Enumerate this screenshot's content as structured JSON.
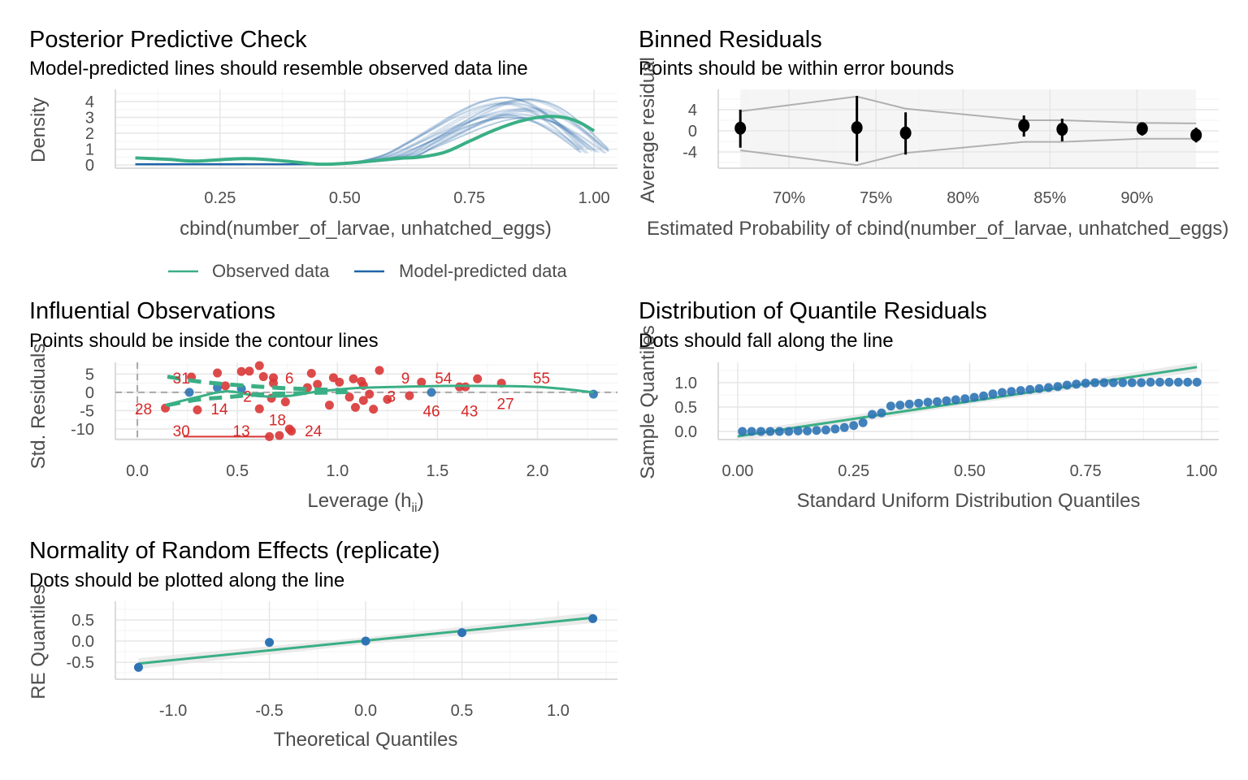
{
  "colors": {
    "observed": "#3aaf85",
    "predicted": "#1f64a8",
    "point_blue": "#2e74b5",
    "point_red": "#d93636",
    "band": "#e6e6e6",
    "bounds": "#b0b0b0"
  },
  "legend": {
    "observed": "Observed data",
    "predicted": "Model-predicted data"
  },
  "chart_data": [
    {
      "id": "ppc",
      "type": "line",
      "title": "Posterior Predictive Check",
      "subtitle": "Model-predicted lines should resemble observed data line",
      "xlabel": "cbind(number_of_larvae, unhatched_eggs)",
      "ylabel": "Density",
      "xlim": [
        0.04,
        1.047
      ],
      "ylim": [
        -0.2,
        4.77
      ],
      "xticks": [
        0.25,
        0.5,
        0.75,
        1.0
      ],
      "xtick_labels": [
        "0.25",
        "0.50",
        "0.75",
        "1.00"
      ],
      "yticks": [
        0,
        1,
        2,
        3,
        4
      ],
      "ytick_labels": [
        "0",
        "1",
        "2",
        "3",
        "4"
      ],
      "grid": true,
      "legend_position": "bottom",
      "series": [
        {
          "name": "Observed data",
          "x": [
            0.08,
            0.15,
            0.2,
            0.3,
            0.38,
            0.45,
            0.52,
            0.6,
            0.65,
            0.7,
            0.75,
            0.8,
            0.85,
            0.9,
            0.94,
            0.97,
            1.0
          ],
          "y": [
            0.45,
            0.35,
            0.25,
            0.4,
            0.25,
            0.05,
            0.15,
            0.4,
            0.5,
            0.8,
            1.5,
            2.2,
            2.75,
            3.05,
            3.0,
            2.7,
            2.15
          ]
        },
        {
          "name": "Model-predicted data",
          "x": [
            0.08,
            0.2,
            0.3,
            0.4,
            0.5,
            0.6,
            0.65,
            0.7,
            0.75,
            0.8,
            0.85,
            0.9,
            0.95,
            1.0
          ],
          "y": [
            0.05,
            0.05,
            0.05,
            0.05,
            0.1,
            0.5,
            1.2,
            2.0,
            2.8,
            3.4,
            3.6,
            3.2,
            2.2,
            0.9
          ]
        }
      ]
    },
    {
      "id": "binned",
      "type": "scatter",
      "title": "Binned Residuals",
      "subtitle": "Points should be within error bounds",
      "xlabel": "Estimated Probability of cbind(number_of_larvae, unhatched_eggs)",
      "ylabel": "Average residual",
      "xlim": [
        65.93,
        94.7
      ],
      "ylim": [
        -7.08,
        7.85
      ],
      "xticks": [
        70,
        75,
        80,
        85,
        90
      ],
      "xtick_labels": [
        "70%",
        "75%",
        "80%",
        "85%",
        "90%"
      ],
      "yticks": [
        -4,
        0,
        4
      ],
      "ytick_labels": [
        "-4",
        "0",
        "4"
      ],
      "grid": true,
      "points": {
        "x": [
          67.2,
          73.9,
          76.7,
          83.5,
          85.7,
          90.3,
          93.4
        ],
        "y": [
          0.5,
          0.6,
          -0.4,
          1.0,
          0.3,
          0.4,
          -0.8
        ],
        "ci_high": [
          4.0,
          6.6,
          3.5,
          2.9,
          2.3,
          1.5,
          0.6
        ],
        "ci_low": [
          -3.2,
          -5.8,
          -4.5,
          -1.1,
          -2.0,
          -0.9,
          -2.2
        ],
        "bound_upper": [
          3.7,
          6.5,
          4.2,
          2.0,
          2.0,
          1.5,
          1.4
        ],
        "bound_lower": [
          -3.7,
          -6.5,
          -4.2,
          -2.1,
          -2.1,
          -1.5,
          -1.5
        ]
      }
    },
    {
      "id": "influential",
      "type": "scatter",
      "title": "Influential Observations",
      "subtitle": "Points should be inside the contour lines",
      "xlabel": "Leverage (h",
      "xlabel_sub": "ii",
      "xlabel_end": ")",
      "ylabel": "Std. Residuals",
      "xlim": [
        -0.11,
        2.4
      ],
      "ylim": [
        -12.9,
        8.2
      ],
      "xticks": [
        0,
        0.5,
        1.0,
        1.5,
        2.0
      ],
      "xtick_labels": [
        "0.0",
        "0.5",
        "1.0",
        "1.5",
        "2.0"
      ],
      "yticks": [
        -10,
        -5,
        0,
        5
      ],
      "ytick_labels": [
        "-10",
        "-5",
        "0",
        "5"
      ],
      "grid": true,
      "points_red": [
        [
          0.14,
          -4.3
        ],
        [
          0.3,
          -4.8
        ],
        [
          0.4,
          5.3
        ],
        [
          0.52,
          5.7
        ],
        [
          0.56,
          5.8
        ],
        [
          0.61,
          7.3
        ],
        [
          0.63,
          4.3
        ],
        [
          0.68,
          4.0
        ],
        [
          0.68,
          2.5
        ],
        [
          0.61,
          -4.5
        ],
        [
          0.67,
          -1.6
        ],
        [
          0.74,
          -2.6
        ],
        [
          0.87,
          5.2
        ],
        [
          0.85,
          1.3
        ],
        [
          0.9,
          2.2
        ],
        [
          0.96,
          -3.5
        ],
        [
          0.98,
          4.0
        ],
        [
          1.01,
          2.8
        ],
        [
          1.06,
          -1.3
        ],
        [
          1.09,
          -4.1
        ],
        [
          1.08,
          3.7
        ],
        [
          1.12,
          3.0
        ],
        [
          1.13,
          1.9
        ],
        [
          1.13,
          -2.2
        ],
        [
          1.16,
          -0.5
        ],
        [
          1.18,
          -4.6
        ],
        [
          1.21,
          6.0
        ],
        [
          1.25,
          -1.9
        ],
        [
          1.36,
          -0.9
        ],
        [
          1.42,
          2.8
        ],
        [
          1.61,
          1.5
        ],
        [
          1.64,
          1.5
        ],
        [
          1.7,
          3.7
        ],
        [
          1.82,
          2.5
        ],
        [
          0.66,
          -12.1
        ],
        [
          0.71,
          -11.8
        ],
        [
          0.76,
          -10.0
        ],
        [
          0.77,
          -10.6
        ],
        [
          0.44,
          1.8
        ],
        [
          0.27,
          4.2
        ]
      ],
      "points_blue": [
        [
          0.26,
          0
        ],
        [
          0.4,
          1.3
        ],
        [
          0.52,
          1.0
        ],
        [
          1.47,
          0
        ],
        [
          2.28,
          -0.5
        ]
      ],
      "smooth": {
        "x": [
          0.14,
          0.3,
          0.45,
          0.6,
          0.75,
          0.9,
          1.1,
          1.3,
          1.6,
          2.0,
          2.28
        ],
        "y": [
          -3.5,
          -1.3,
          0.3,
          -1.0,
          -1.0,
          0.2,
          1.2,
          1.5,
          1.8,
          1.5,
          0
        ]
      },
      "contour_upper": {
        "x": [
          0.15,
          0.3,
          0.45,
          0.6,
          0.75,
          0.9,
          1.05
        ],
        "y": [
          4.3,
          3.0,
          2.2,
          1.6,
          1.1,
          0.8,
          0.6
        ]
      },
      "contour_lower": {
        "x": [
          0.15,
          0.3,
          0.45,
          0.6,
          0.75,
          0.9,
          1.05
        ],
        "y": [
          -3.5,
          -2.0,
          -1.3,
          -0.6,
          -0.3,
          -0.1,
          0.1
        ]
      },
      "red_segment": {
        "x": [
          0.23,
          0.66
        ],
        "y": [
          -12.1,
          -12.1
        ]
      },
      "labels": [
        {
          "text": "31",
          "x": 0.22,
          "y": 4.0
        },
        {
          "text": "28",
          "x": 0.03,
          "y": -4.5
        },
        {
          "text": "30",
          "x": 0.22,
          "y": -10.5
        },
        {
          "text": "13",
          "x": 0.52,
          "y": -10.5
        },
        {
          "text": "14",
          "x": 0.41,
          "y": -4.5
        },
        {
          "text": "18",
          "x": 0.7,
          "y": -7.5
        },
        {
          "text": "24",
          "x": 0.88,
          "y": -10.5
        },
        {
          "text": "2",
          "x": 0.55,
          "y": -1.0
        },
        {
          "text": "6",
          "x": 0.76,
          "y": 4.0
        },
        {
          "text": "3",
          "x": 1.27,
          "y": -1.0
        },
        {
          "text": "9",
          "x": 1.34,
          "y": 4.0
        },
        {
          "text": "54",
          "x": 1.53,
          "y": 4.0
        },
        {
          "text": "46",
          "x": 1.47,
          "y": -5.0
        },
        {
          "text": "43",
          "x": 1.66,
          "y": -5.0
        },
        {
          "text": "27",
          "x": 1.84,
          "y": -3.0
        },
        {
          "text": "55",
          "x": 2.02,
          "y": 4.0
        }
      ]
    },
    {
      "id": "qq_uniform",
      "type": "scatter",
      "title": "Distribution of Quantile Residuals",
      "subtitle": "Dots should fall along the line",
      "xlabel": "Standard Uniform Distribution Quantiles",
      "ylabel": "Sample Quantiles",
      "xlim": [
        -0.042,
        1.037
      ],
      "ylim": [
        -0.167,
        1.417
      ],
      "xticks": [
        0,
        0.25,
        0.5,
        0.75,
        1.0
      ],
      "xtick_labels": [
        "0.00",
        "0.25",
        "0.50",
        "0.75",
        "1.00"
      ],
      "yticks": [
        0,
        0.5,
        1.0
      ],
      "ytick_labels": [
        "0.0",
        "0.5",
        "1.0"
      ],
      "grid": true,
      "sample": [
        0,
        0,
        0,
        0,
        0,
        0,
        0.01,
        0.01,
        0.02,
        0.03,
        0.05,
        0.08,
        0.12,
        0.18,
        0.35,
        0.38,
        0.52,
        0.54,
        0.56,
        0.58,
        0.6,
        0.61,
        0.63,
        0.65,
        0.67,
        0.7,
        0.73,
        0.77,
        0.8,
        0.82,
        0.84,
        0.86,
        0.88,
        0.9,
        0.92,
        0.95,
        0.97,
        0.99,
        1.0,
        1.0,
        1.0,
        1.0,
        1.0,
        1.0,
        1.01,
        1.01,
        1.01,
        1.01,
        1.01,
        1.01
      ],
      "line": {
        "x": [
          0.0,
          0.99
        ],
        "y": [
          -0.1,
          1.32
        ]
      }
    },
    {
      "id": "re_qq",
      "type": "scatter",
      "title": "Normality of Random Effects (replicate)",
      "subtitle": "Dots should be plotted along the line",
      "xlabel": "Theoretical Quantiles",
      "ylabel": "RE Quantiles",
      "xlim": [
        -1.3,
        1.308
      ],
      "ylim": [
        -0.9,
        0.94
      ],
      "xticks": [
        -1.0,
        -0.5,
        0,
        0.5,
        1.0
      ],
      "xtick_labels": [
        "-1.0",
        "-0.5",
        "0.0",
        "0.5",
        "1.0"
      ],
      "yticks": [
        -0.5,
        0,
        0.5
      ],
      "ytick_labels": [
        "-0.5",
        "0.0",
        "0.5"
      ],
      "grid": true,
      "points": {
        "x": [
          -1.18,
          -0.5,
          0,
          0.5,
          1.18
        ],
        "y": [
          -0.62,
          -0.03,
          0.0,
          0.2,
          0.53
        ],
        "err": [
          0.05,
          0.05,
          0.06,
          0.07,
          0.07
        ]
      },
      "line": {
        "x": [
          -1.18,
          1.18
        ],
        "y": [
          -0.53,
          0.55
        ]
      }
    }
  ]
}
